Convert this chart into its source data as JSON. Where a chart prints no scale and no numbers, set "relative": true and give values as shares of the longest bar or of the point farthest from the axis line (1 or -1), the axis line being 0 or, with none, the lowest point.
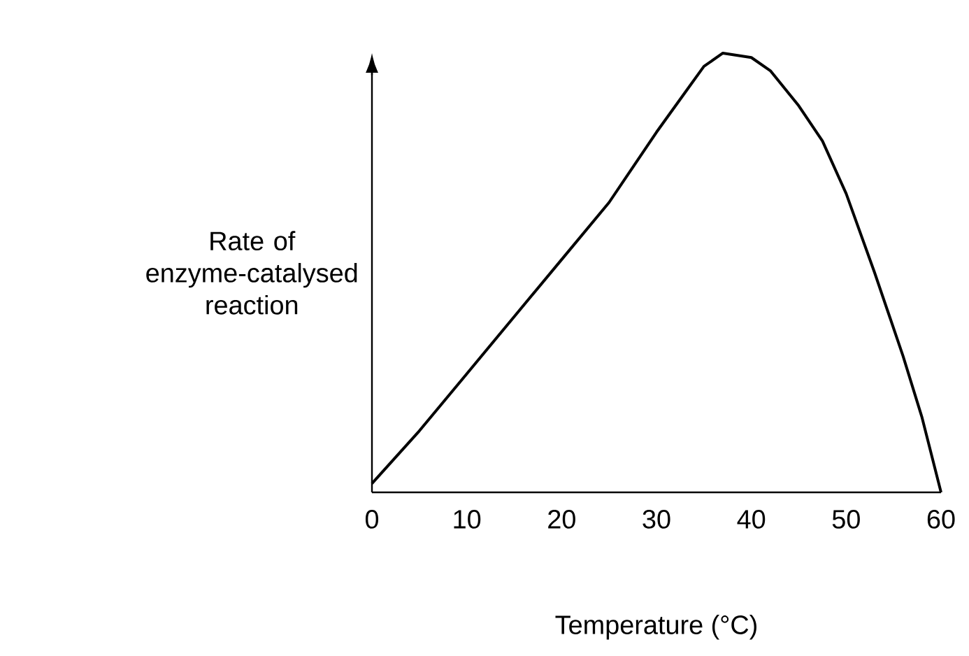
{
  "chart_data": {
    "type": "line",
    "relative": true,
    "xlabel": "Temperature (°C)",
    "ylabel": "Rate of enzyme-catalysed reaction",
    "xlim": [
      0,
      60
    ],
    "xticks": [
      0,
      10,
      20,
      30,
      40,
      50,
      60
    ],
    "marker": "none",
    "line_style": "solid",
    "grid": false,
    "series": [
      {
        "color": "#000000",
        "x": [
          0,
          5,
          10,
          15,
          20,
          25,
          30,
          33,
          35,
          37,
          40,
          42,
          45,
          47.5,
          50,
          53,
          56,
          58,
          60
        ],
        "values": [
          0.02,
          0.14,
          0.27,
          0.4,
          0.53,
          0.66,
          0.82,
          0.91,
          0.97,
          1.0,
          0.99,
          0.96,
          0.88,
          0.8,
          0.68,
          0.5,
          0.31,
          0.17,
          0
        ]
      }
    ]
  }
}
